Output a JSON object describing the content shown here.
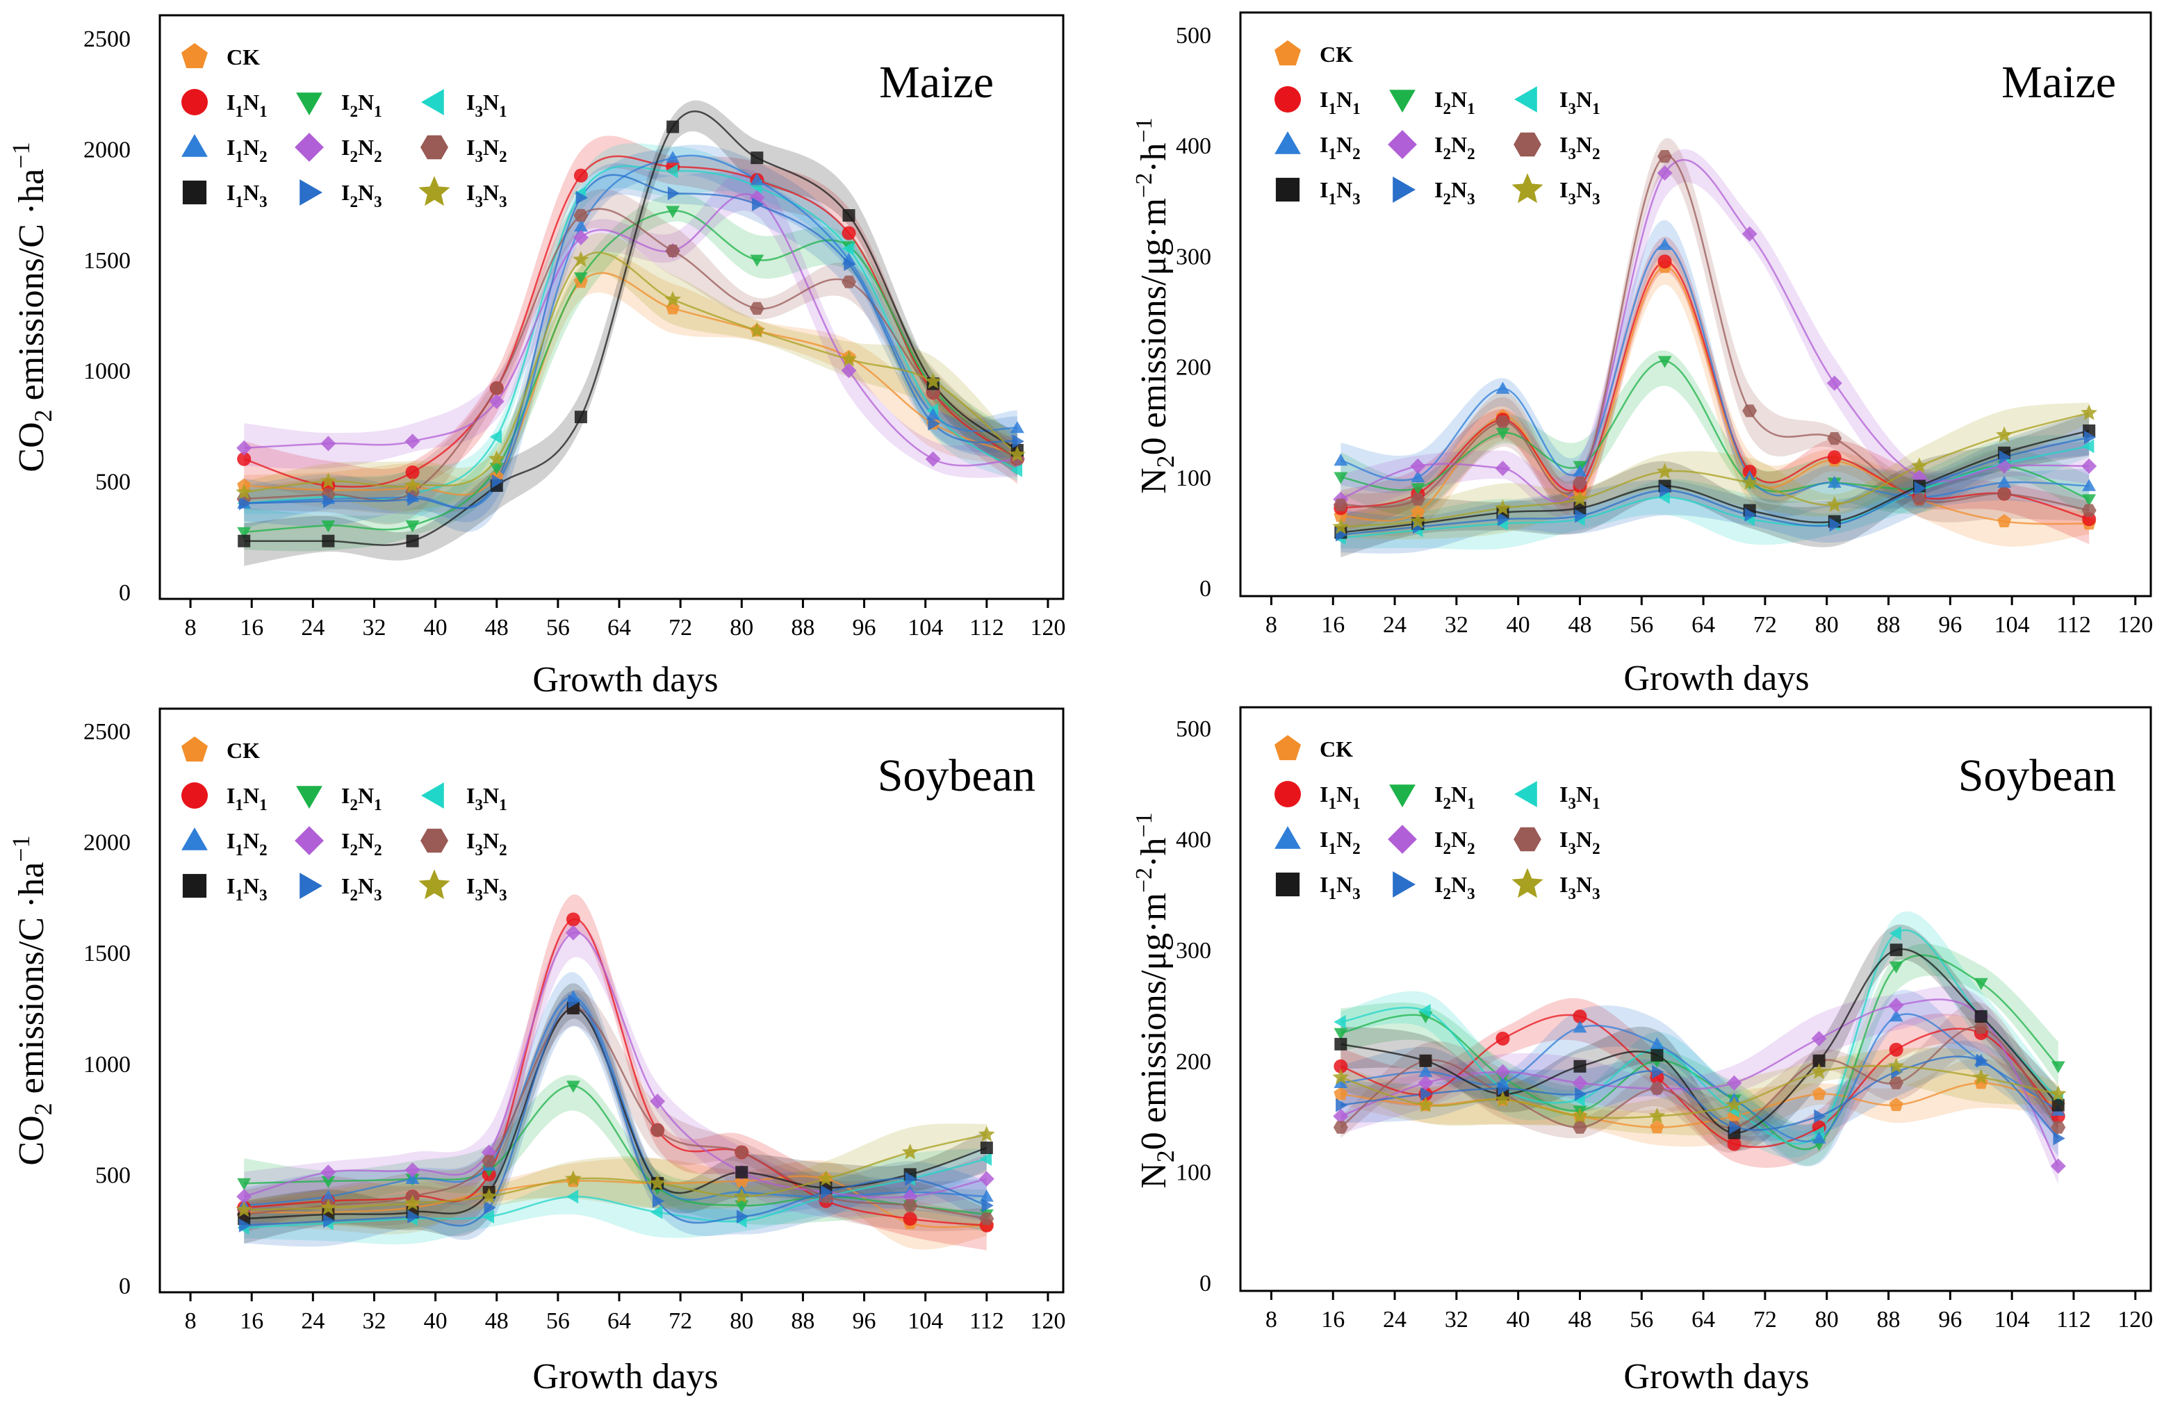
{
  "figure": {
    "legend": {
      "entries": [
        {
          "key": "CK",
          "label": "CK",
          "main": "CK",
          "subs": [],
          "marker": "pentagon",
          "color": "#F28E2B"
        },
        {
          "key": "I1N1",
          "label": "I₁N₁",
          "main": "IN",
          "subs": [
            "1",
            "1"
          ],
          "marker": "circle",
          "color": "#E8141B"
        },
        {
          "key": "I2N1",
          "label": "I₂N₁",
          "main": "IN",
          "subs": [
            "2",
            "1"
          ],
          "marker": "triangle-down",
          "color": "#1DB34A"
        },
        {
          "key": "I3N1",
          "label": "I₃N₁",
          "main": "IN",
          "subs": [
            "3",
            "1"
          ],
          "marker": "triangle-left",
          "color": "#20D6C8"
        },
        {
          "key": "I1N2",
          "label": "I₁N₂",
          "main": "IN",
          "subs": [
            "1",
            "2"
          ],
          "marker": "triangle-up",
          "color": "#2F7ED8"
        },
        {
          "key": "I2N2",
          "label": "I₂N₂",
          "main": "IN",
          "subs": [
            "2",
            "2"
          ],
          "marker": "diamond",
          "color": "#B15FD6"
        },
        {
          "key": "I3N2",
          "label": "I₃N₂",
          "main": "IN",
          "subs": [
            "3",
            "2"
          ],
          "marker": "hexagon",
          "color": "#9A5A55"
        },
        {
          "key": "I1N3",
          "label": "I₁N₃",
          "main": "IN",
          "subs": [
            "1",
            "3"
          ],
          "marker": "square",
          "color": "#1A1A1A"
        },
        {
          "key": "I2N3",
          "label": "I₂N₃",
          "main": "IN",
          "subs": [
            "2",
            "3"
          ],
          "marker": "triangle-right",
          "color": "#2A6FC9"
        },
        {
          "key": "I3N3",
          "label": "I₃N₃",
          "main": "IN",
          "subs": [
            "3",
            "3"
          ],
          "marker": "star",
          "color": "#A8A020"
        }
      ]
    }
  },
  "chart_data": [
    {
      "id": "co2-maize",
      "type": "line",
      "title": "Maize",
      "xlabel": "Growth days",
      "ylabel": "CO₂ emissions/C ·ha⁻¹",
      "ylabel_parts": {
        "pre": "CO",
        "sub": "2",
        "mid": " emissions/C ·ha",
        "sup": "−1"
      },
      "xlim": [
        4,
        122
      ],
      "ylim": [
        0,
        2500
      ],
      "xticks": [
        8,
        16,
        24,
        32,
        40,
        48,
        56,
        64,
        72,
        80,
        88,
        96,
        104,
        112,
        120
      ],
      "yticks": [
        0,
        500,
        1000,
        1500,
        2000,
        2500
      ],
      "x": [
        15,
        26,
        37,
        48,
        59,
        71,
        82,
        94,
        105,
        116
      ],
      "series": [
        {
          "name": "CK",
          "values": [
            480,
            460,
            470,
            520,
            1400,
            1280,
            1180,
            1060,
            760,
            620
          ]
        },
        {
          "name": "I1N1",
          "values": [
            600,
            480,
            540,
            920,
            1880,
            1920,
            1860,
            1620,
            900,
            600
          ]
        },
        {
          "name": "I2N1",
          "values": [
            270,
            300,
            300,
            560,
            1420,
            1720,
            1500,
            1560,
            920,
            600
          ]
        },
        {
          "name": "I3N1",
          "values": [
            400,
            430,
            440,
            700,
            1800,
            1900,
            1830,
            1550,
            820,
            550
          ]
        },
        {
          "name": "I1N2",
          "values": [
            400,
            420,
            430,
            480,
            1650,
            1960,
            1860,
            1500,
            800,
            740
          ]
        },
        {
          "name": "I2N2",
          "values": [
            650,
            670,
            680,
            860,
            1600,
            1540,
            1780,
            1000,
            600,
            600
          ]
        },
        {
          "name": "I3N2",
          "values": [
            420,
            440,
            450,
            920,
            1700,
            1540,
            1280,
            1400,
            900,
            600
          ]
        },
        {
          "name": "I1N3",
          "values": [
            230,
            230,
            230,
            480,
            790,
            2100,
            1960,
            1700,
            940,
            640
          ]
        },
        {
          "name": "I2N3",
          "values": [
            400,
            410,
            420,
            500,
            1780,
            1800,
            1750,
            1480,
            760,
            680
          ]
        },
        {
          "name": "I3N3",
          "values": [
            450,
            500,
            480,
            600,
            1500,
            1320,
            1180,
            1050,
            950,
            620
          ]
        }
      ]
    },
    {
      "id": "n2o-maize",
      "type": "line",
      "title": "Maize",
      "xlabel": "Growth days",
      "ylabel": "N₂0 emissions/μg·m⁻²·h⁻¹",
      "ylabel_parts": {
        "pre": "N",
        "sub": "2",
        "mid": "0 emissions/μg·m",
        "sup1": "−2",
        "mid2": "·h",
        "sup": "−1"
      },
      "xlim": [
        4,
        122
      ],
      "ylim": [
        0,
        500
      ],
      "xticks": [
        8,
        16,
        24,
        32,
        40,
        48,
        56,
        64,
        72,
        80,
        88,
        96,
        104,
        112,
        120
      ],
      "yticks": [
        0,
        100,
        200,
        300,
        400,
        500
      ],
      "x": [
        17,
        27,
        38,
        48,
        59,
        70,
        81,
        92,
        103,
        114
      ],
      "series": [
        {
          "name": "CK",
          "values": [
            65,
            68,
            155,
            85,
            290,
            100,
            115,
            80,
            60,
            58
          ]
        },
        {
          "name": "I1N1",
          "values": [
            72,
            85,
            152,
            92,
            295,
            105,
            118,
            82,
            85,
            62
          ]
        },
        {
          "name": "I2N1",
          "values": [
            100,
            90,
            140,
            110,
            205,
            95,
            95,
            90,
            110,
            80
          ]
        },
        {
          "name": "I3N1",
          "values": [
            45,
            52,
            58,
            62,
            82,
            62,
            58,
            88,
            112,
            128
          ]
        },
        {
          "name": "I1N2",
          "values": [
            115,
            100,
            180,
            105,
            310,
            100,
            95,
            82,
            95,
            92
          ]
        },
        {
          "name": "I2N2",
          "values": [
            80,
            110,
            108,
            95,
            375,
            320,
            185,
            100,
            110,
            110
          ]
        },
        {
          "name": "I3N2",
          "values": [
            75,
            80,
            150,
            95,
            390,
            160,
            135,
            80,
            85,
            70
          ]
        },
        {
          "name": "I1N3",
          "values": [
            50,
            58,
            68,
            72,
            92,
            70,
            60,
            92,
            122,
            142
          ]
        },
        {
          "name": "I2N3",
          "values": [
            48,
            55,
            62,
            65,
            88,
            66,
            57,
            90,
            118,
            136
          ]
        },
        {
          "name": "I3N3",
          "values": [
            55,
            60,
            72,
            80,
            105,
            95,
            75,
            110,
            138,
            158
          ]
        }
      ]
    },
    {
      "id": "co2-soybean",
      "type": "line",
      "title": "Soybean",
      "xlabel": "Growth days",
      "ylabel": "CO₂ emissions/C ·ha⁻¹",
      "ylabel_parts": {
        "pre": "CO",
        "sub": "2",
        "mid": " emissions/C ·ha",
        "sup": "−1"
      },
      "xlim": [
        4,
        122
      ],
      "ylim": [
        0,
        2500
      ],
      "xticks": [
        8,
        16,
        24,
        32,
        40,
        48,
        56,
        64,
        72,
        80,
        88,
        96,
        104,
        112,
        120
      ],
      "yticks": [
        0,
        500,
        1000,
        1500,
        2000,
        2500
      ],
      "x": [
        15,
        26,
        37,
        47,
        58,
        69,
        80,
        91,
        102,
        112
      ],
      "series": [
        {
          "name": "CK",
          "values": [
            330,
            330,
            350,
            420,
            470,
            460,
            470,
            480,
            280,
            270
          ]
        },
        {
          "name": "I1N1",
          "values": [
            350,
            380,
            400,
            500,
            1650,
            700,
            600,
            380,
            300,
            270
          ]
        },
        {
          "name": "I2N1",
          "values": [
            460,
            470,
            480,
            520,
            900,
            440,
            360,
            400,
            360,
            320
          ]
        },
        {
          "name": "I3N1",
          "values": [
            260,
            280,
            300,
            310,
            400,
            330,
            290,
            400,
            480,
            570
          ]
        },
        {
          "name": "I1N2",
          "values": [
            360,
            400,
            480,
            540,
            1300,
            460,
            420,
            400,
            420,
            400
          ]
        },
        {
          "name": "I2N2",
          "values": [
            400,
            510,
            520,
            600,
            1590,
            830,
            510,
            420,
            400,
            480
          ]
        },
        {
          "name": "I3N2",
          "values": [
            320,
            360,
            400,
            560,
            1250,
            700,
            600,
            400,
            360,
            300
          ]
        },
        {
          "name": "I1N3",
          "values": [
            300,
            320,
            330,
            420,
            1250,
            460,
            510,
            440,
            500,
            620
          ]
        },
        {
          "name": "I2N3",
          "values": [
            270,
            290,
            310,
            350,
            1280,
            380,
            310,
            420,
            480,
            360
          ]
        },
        {
          "name": "I3N3",
          "values": [
            340,
            350,
            370,
            400,
            480,
            460,
            400,
            480,
            600,
            680
          ]
        }
      ]
    },
    {
      "id": "n2o-soybean",
      "type": "line",
      "title": "Soybean",
      "xlabel": "Growth days",
      "ylabel": "N₂0 emissions/μg·m⁻²·h⁻¹",
      "ylabel_parts": {
        "pre": "N",
        "sub": "2",
        "mid": "0 emissions/μg·m",
        "sup1": "−2",
        "mid2": "·h",
        "sup": "−1"
      },
      "xlim": [
        4,
        122
      ],
      "ylim": [
        0,
        500
      ],
      "xticks": [
        8,
        16,
        24,
        32,
        40,
        48,
        56,
        64,
        72,
        80,
        88,
        96,
        104,
        112,
        120
      ],
      "yticks": [
        0,
        100,
        200,
        300,
        400,
        500
      ],
      "x": [
        17,
        28,
        38,
        48,
        58,
        68,
        79,
        89,
        100,
        110
      ],
      "series": [
        {
          "name": "CK",
          "values": [
            170,
            160,
            165,
            150,
            140,
            150,
            170,
            160,
            180,
            160
          ]
        },
        {
          "name": "I1N1",
          "values": [
            195,
            170,
            220,
            240,
            185,
            125,
            140,
            210,
            225,
            150
          ]
        },
        {
          "name": "I2N1",
          "values": [
            225,
            240,
            185,
            155,
            200,
            165,
            125,
            285,
            270,
            195
          ]
        },
        {
          "name": "I3N1",
          "values": [
            235,
            245,
            175,
            165,
            210,
            155,
            135,
            315,
            240,
            165
          ]
        },
        {
          "name": "I1N2",
          "values": [
            180,
            190,
            180,
            230,
            215,
            165,
            130,
            240,
            200,
            155
          ]
        },
        {
          "name": "I2N2",
          "values": [
            150,
            180,
            190,
            180,
            175,
            180,
            220,
            250,
            240,
            105
          ]
        },
        {
          "name": "I3N2",
          "values": [
            140,
            200,
            170,
            140,
            175,
            140,
            200,
            180,
            230,
            140
          ]
        },
        {
          "name": "I1N3",
          "values": [
            215,
            200,
            170,
            195,
            205,
            135,
            200,
            300,
            240,
            160
          ]
        },
        {
          "name": "I2N3",
          "values": [
            160,
            170,
            175,
            170,
            190,
            140,
            150,
            190,
            200,
            130
          ]
        },
        {
          "name": "I3N3",
          "values": [
            185,
            160,
            165,
            150,
            150,
            160,
            190,
            195,
            185,
            170
          ]
        }
      ]
    }
  ]
}
